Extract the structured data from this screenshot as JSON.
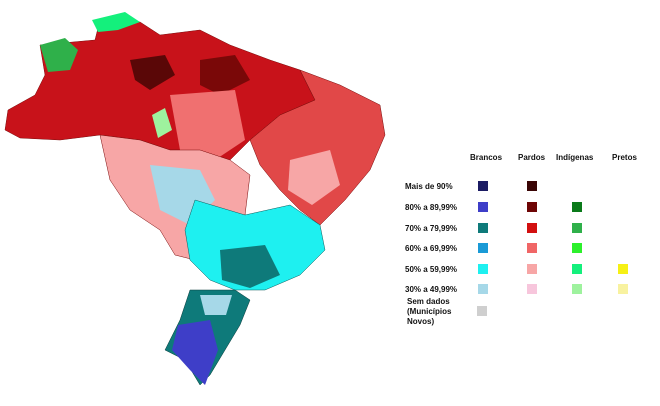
{
  "legend": {
    "headers": [
      "Brancos",
      "Pardos",
      "Indígenas",
      "Pretos"
    ],
    "rows": [
      {
        "label": "Mais de 90%",
        "colors": [
          "#1b1b63",
          "#3a0505",
          null,
          null
        ]
      },
      {
        "label": "80% a 89,99%",
        "colors": [
          "#3e3ec8",
          "#6e0505",
          "#0a7a1a",
          null
        ]
      },
      {
        "label": "70% a 79,99%",
        "colors": [
          "#0e7a7a",
          "#d21010",
          "#2fb04a",
          null
        ]
      },
      {
        "label": "60% a 69,99%",
        "colors": [
          "#1a9ad6",
          "#f06666",
          "#2cf02c",
          null
        ]
      },
      {
        "label": "50% a 59,99%",
        "colors": [
          "#1ef0f0",
          "#f7a6a6",
          "#14f07c",
          "#f6f015"
        ]
      },
      {
        "label": "30% a 49,99%",
        "colors": [
          "#a6d8e8",
          "#f7c6dc",
          "#9ef29e",
          "#f8f2a0"
        ]
      }
    ],
    "no_data": {
      "lines": [
        "Sem dados",
        "(Municípios",
        "Novos)"
      ],
      "color": "#cfcfcf"
    }
  }
}
